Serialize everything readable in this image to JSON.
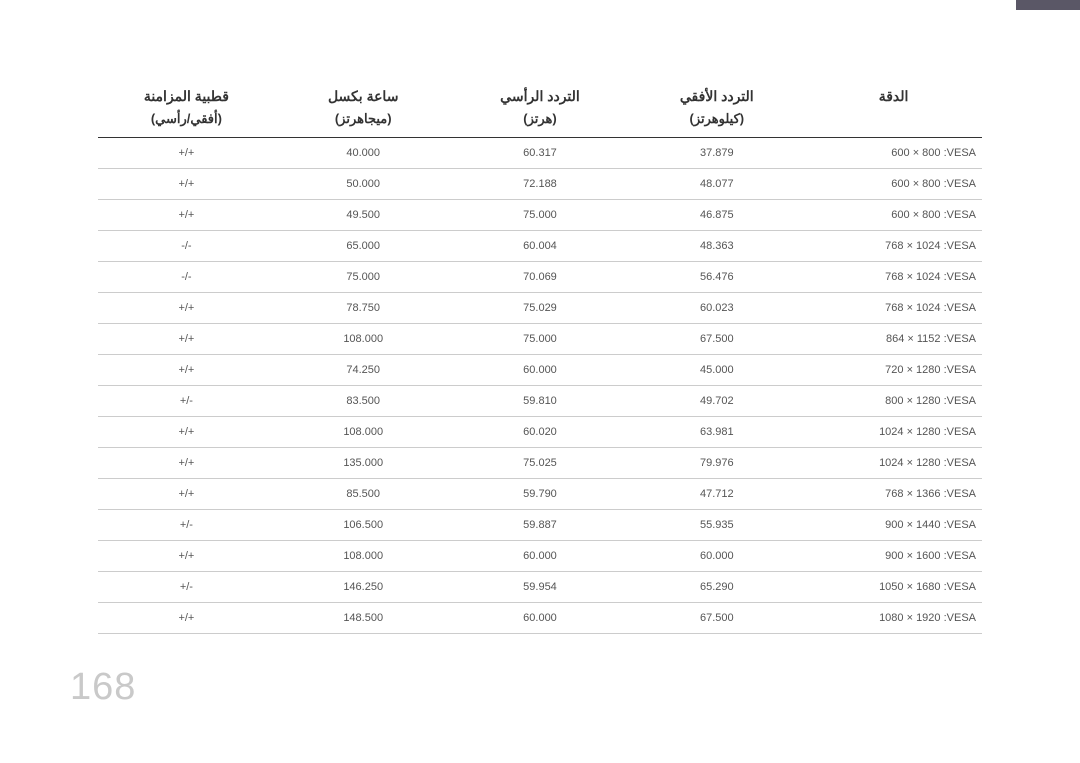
{
  "page_number": "168",
  "table": {
    "headers": {
      "col1_top": "قطبية المزامنة",
      "col1_sub": "(أفقي/رأسي)",
      "col2_top": "ساعة بكسل",
      "col2_sub": "(ميجاهرتز)",
      "col3_top": "التردد الرأسي",
      "col3_sub": "(هرتز)",
      "col4_top": "التردد الأفقي",
      "col4_sub": "(كيلوهرتز)",
      "col5_top": "الدقة",
      "col5_sub": ""
    },
    "rows": [
      {
        "sync": "+/+",
        "pixel": "40.000",
        "vfreq": "60.317",
        "hfreq": "37.879",
        "res": "600 × 800 :VESA"
      },
      {
        "sync": "+/+",
        "pixel": "50.000",
        "vfreq": "72.188",
        "hfreq": "48.077",
        "res": "600 × 800 :VESA"
      },
      {
        "sync": "+/+",
        "pixel": "49.500",
        "vfreq": "75.000",
        "hfreq": "46.875",
        "res": "600 × 800 :VESA"
      },
      {
        "sync": "-/-",
        "pixel": "65.000",
        "vfreq": "60.004",
        "hfreq": "48.363",
        "res": "768 × 1024 :VESA"
      },
      {
        "sync": "-/-",
        "pixel": "75.000",
        "vfreq": "70.069",
        "hfreq": "56.476",
        "res": "768 × 1024 :VESA"
      },
      {
        "sync": "+/+",
        "pixel": "78.750",
        "vfreq": "75.029",
        "hfreq": "60.023",
        "res": "768 × 1024 :VESA"
      },
      {
        "sync": "+/+",
        "pixel": "108.000",
        "vfreq": "75.000",
        "hfreq": "67.500",
        "res": "864 × 1152 :VESA"
      },
      {
        "sync": "+/+",
        "pixel": "74.250",
        "vfreq": "60.000",
        "hfreq": "45.000",
        "res": "720 × 1280 :VESA"
      },
      {
        "sync": "+/-",
        "pixel": "83.500",
        "vfreq": "59.810",
        "hfreq": "49.702",
        "res": "800 × 1280 :VESA"
      },
      {
        "sync": "+/+",
        "pixel": "108.000",
        "vfreq": "60.020",
        "hfreq": "63.981",
        "res": "1024 × 1280 :VESA"
      },
      {
        "sync": "+/+",
        "pixel": "135.000",
        "vfreq": "75.025",
        "hfreq": "79.976",
        "res": "1024 × 1280 :VESA"
      },
      {
        "sync": "+/+",
        "pixel": "85.500",
        "vfreq": "59.790",
        "hfreq": "47.712",
        "res": "768 × 1366 :VESA"
      },
      {
        "sync": "+/-",
        "pixel": "106.500",
        "vfreq": "59.887",
        "hfreq": "55.935",
        "res": "900 × 1440 :VESA"
      },
      {
        "sync": "+/+",
        "pixel": "108.000",
        "vfreq": "60.000",
        "hfreq": "60.000",
        "res": "900 × 1600 :VESA"
      },
      {
        "sync": "+/-",
        "pixel": "146.250",
        "vfreq": "59.954",
        "hfreq": "65.290",
        "res": "1050 × 1680 :VESA"
      },
      {
        "sync": "+/+",
        "pixel": "148.500",
        "vfreq": "60.000",
        "hfreq": "67.500",
        "res": "1080 × 1920 :VESA"
      }
    ]
  },
  "style": {
    "accent_bar_color": "#5a5766",
    "header_color": "#333333",
    "cell_color": "#555555",
    "row_border": "#cccccc",
    "header_border": "#333333",
    "page_num_color": "#c9c9c9",
    "header_fontsize": 14,
    "subheader_fontsize": 13,
    "cell_fontsize": 11,
    "page_num_fontsize": 38,
    "background": "#ffffff"
  }
}
